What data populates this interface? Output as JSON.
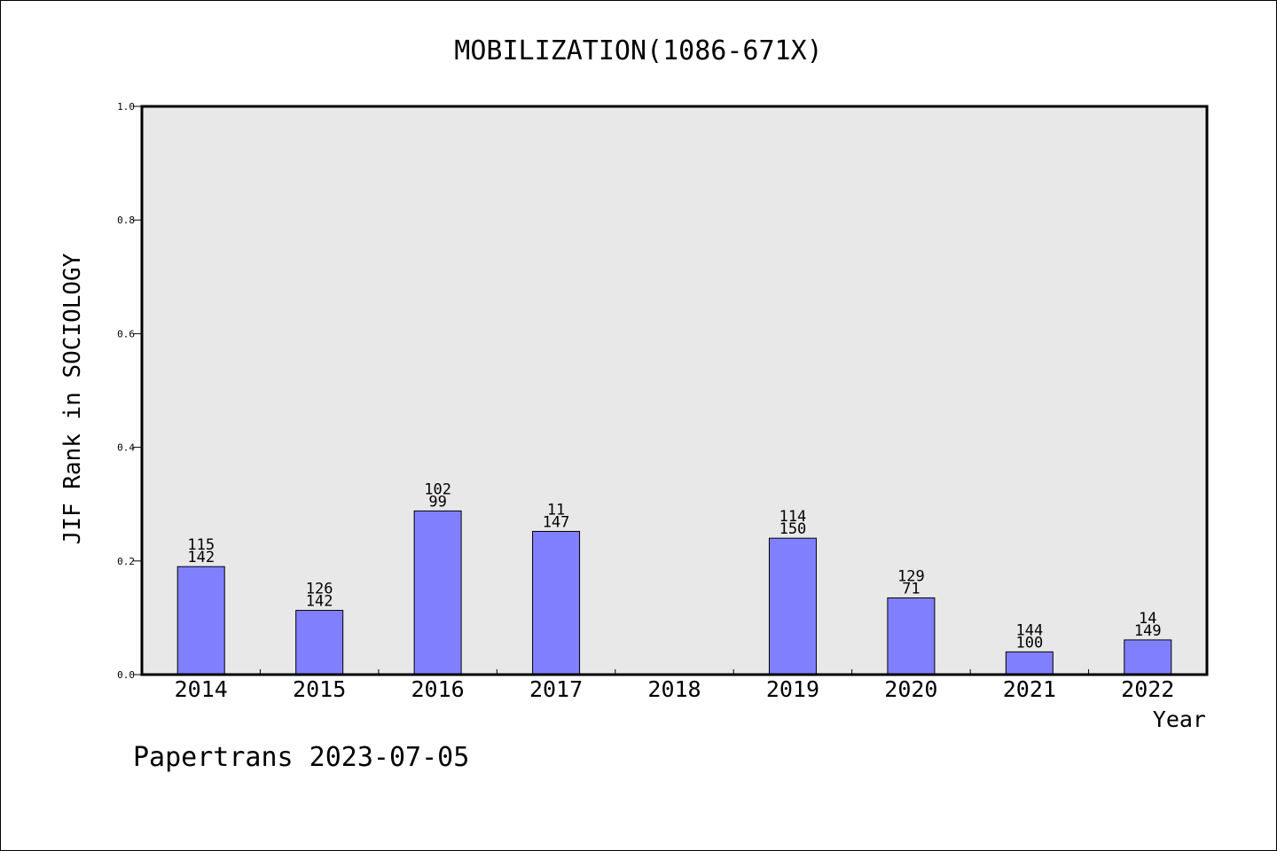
{
  "chart_data": {
    "type": "bar",
    "title": "MOBILIZATION(1086-671X)",
    "xlabel": "Year",
    "ylabel": "JIF Rank in SOCIOLOGY",
    "ylim": [
      0,
      1.0
    ],
    "yticks": [
      "0.0",
      "0.2",
      "0.4",
      "0.6",
      "0.8",
      "1.0"
    ],
    "categories": [
      "2014",
      "2015",
      "2016",
      "2017",
      "2018",
      "2019",
      "2020",
      "2021",
      "2022"
    ],
    "values": [
      0.19,
      0.113,
      0.288,
      0.252,
      null,
      0.24,
      0.135,
      0.04,
      0.061
    ],
    "rank": [
      "115",
      "126",
      "102",
      "11",
      "",
      "114",
      "129",
      "144",
      "14"
    ],
    "total": [
      "142",
      "142",
      "99",
      "147",
      "",
      "150",
      "71",
      "100",
      "149"
    ],
    "grid": false,
    "bar_color": "#8080ff",
    "plot_background": "#e8e8e8"
  },
  "footer": {
    "text": "Papertrans 2023-07-05"
  }
}
